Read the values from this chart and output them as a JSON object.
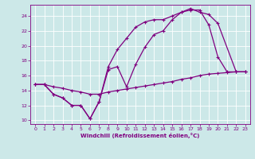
{
  "xlabel": "Windchill (Refroidissement éolien,°C)",
  "bg_color": "#cce8e8",
  "line_color": "#800080",
  "grid_color": "#ffffff",
  "xlim": [
    -0.5,
    23.5
  ],
  "ylim": [
    9.5,
    25.5
  ],
  "xticks": [
    0,
    1,
    2,
    3,
    4,
    5,
    6,
    7,
    8,
    9,
    10,
    11,
    12,
    13,
    14,
    15,
    16,
    17,
    18,
    19,
    20,
    21,
    22,
    23
  ],
  "yticks": [
    10,
    12,
    14,
    16,
    18,
    20,
    22,
    24
  ],
  "line1_x": [
    0,
    1,
    2,
    3,
    4,
    5,
    6,
    7,
    8,
    9,
    10,
    11,
    12,
    13,
    14,
    15,
    16,
    17,
    18,
    19,
    20,
    21,
    22,
    23
  ],
  "line1_y": [
    14.8,
    14.8,
    13.5,
    13.0,
    12.0,
    12.0,
    10.2,
    12.5,
    16.8,
    17.2,
    14.5,
    17.5,
    19.8,
    21.5,
    22.0,
    23.5,
    24.5,
    24.8,
    24.8,
    22.8,
    18.5,
    16.5,
    16.5,
    16.5
  ],
  "line2_x": [
    0,
    1,
    2,
    3,
    4,
    5,
    6,
    7,
    8,
    9,
    10,
    11,
    12,
    13,
    14,
    15,
    16,
    17,
    18,
    19,
    20,
    22,
    23
  ],
  "line2_y": [
    14.8,
    14.8,
    13.5,
    13.0,
    12.0,
    12.0,
    10.2,
    12.5,
    17.2,
    19.5,
    21.0,
    22.5,
    23.2,
    23.5,
    23.5,
    24.0,
    24.5,
    25.0,
    24.5,
    24.2,
    23.0,
    16.5,
    16.5
  ],
  "line3_x": [
    0,
    1,
    2,
    3,
    4,
    5,
    6,
    7,
    8,
    9,
    10,
    11,
    12,
    13,
    14,
    15,
    16,
    17,
    18,
    19,
    20,
    21,
    22,
    23
  ],
  "line3_y": [
    14.8,
    14.8,
    14.5,
    14.3,
    14.0,
    13.8,
    13.5,
    13.5,
    13.8,
    14.0,
    14.2,
    14.4,
    14.6,
    14.8,
    15.0,
    15.2,
    15.5,
    15.7,
    16.0,
    16.2,
    16.3,
    16.4,
    16.5,
    16.5
  ]
}
